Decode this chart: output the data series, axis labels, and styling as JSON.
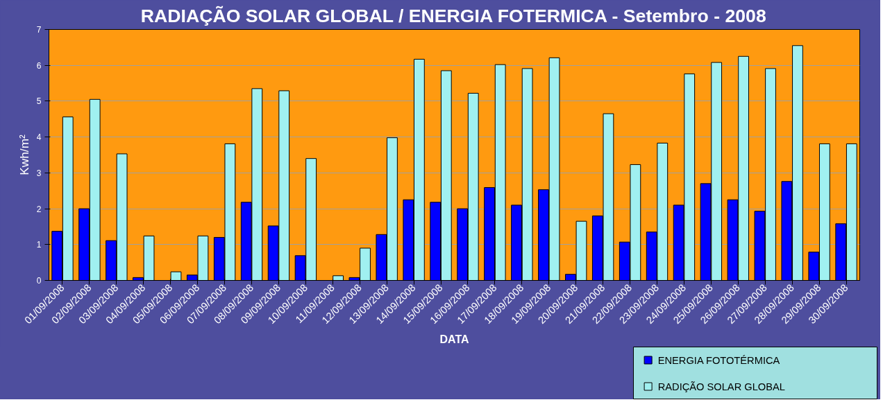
{
  "chart_data": {
    "type": "bar",
    "title": "RADIAÇÃO SOLAR GLOBAL / ENERGIA FOTERMICA - Setembro - 2008",
    "xlabel": "DATA",
    "ylabel": "Kwh/m²",
    "categories": [
      "01/09/2008",
      "02/09/2008",
      "03/09/2008",
      "04/09/2008",
      "05/09/2008",
      "06/09/2008",
      "07/09/2008",
      "08/09/2008",
      "09/09/2008",
      "10/09/2008",
      "11/09/2008",
      "12/09/2008",
      "13/09/2008",
      "14/09/2008",
      "15/09/2008",
      "16/09/2008",
      "17/09/2008",
      "18/09/2008",
      "19/09/2008",
      "20/09/2008",
      "21/09/2008",
      "22/09/2008",
      "23/09/2008",
      "24/09/2008",
      "25/09/2008",
      "26/09/2008",
      "27/09/2008",
      "28/09/2008",
      "29/09/2008",
      "30/09/2008"
    ],
    "series": [
      {
        "name": "ENERGIA FOTOTÉRMICA",
        "color": "#0000ff",
        "values": [
          1.37,
          2.0,
          1.11,
          0.08,
          null,
          0.15,
          1.2,
          2.18,
          1.52,
          0.69,
          null,
          0.08,
          1.28,
          2.25,
          2.18,
          2.0,
          2.59,
          2.1,
          2.53,
          0.17,
          1.8,
          1.07,
          1.35,
          2.1,
          2.7,
          2.25,
          1.93,
          2.76,
          0.79,
          1.58
        ]
      },
      {
        "name": "RADIÇÃO SOLAR GLOBAL",
        "color": "#a0f0f0",
        "values": [
          4.56,
          5.05,
          3.53,
          1.24,
          0.24,
          1.24,
          3.81,
          5.35,
          5.29,
          3.4,
          0.13,
          0.9,
          3.98,
          6.17,
          5.85,
          5.22,
          6.02,
          5.91,
          6.21,
          1.65,
          4.65,
          3.23,
          3.83,
          5.76,
          6.08,
          6.25,
          5.91,
          6.55,
          3.81,
          3.81
        ]
      }
    ],
    "ylim": [
      0,
      7
    ],
    "yticks": [
      0,
      1,
      2,
      3,
      4,
      5,
      6,
      7
    ],
    "grid": "y",
    "legend": "bottom right"
  }
}
